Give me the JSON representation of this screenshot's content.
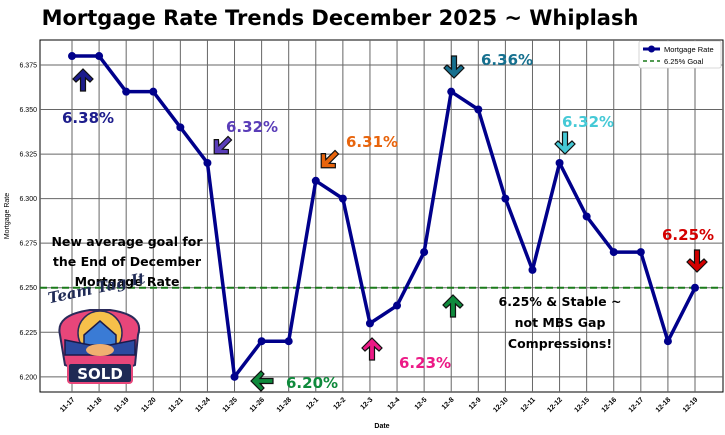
{
  "chart_data": {
    "type": "line",
    "title": "Mortgage Rate Trends December 2025 ~ Whiplash",
    "xlabel": "Date",
    "ylabel": "Mortgage Rate",
    "categories": [
      "11-17",
      "11-18",
      "11-19",
      "11-20",
      "11-21",
      "11-24",
      "11-25",
      "11-26",
      "11-28",
      "12-1",
      "12-2",
      "12-3",
      "12-4",
      "12-5",
      "12-8",
      "12-9",
      "12-10",
      "12-11",
      "12-12",
      "12-15",
      "12-16",
      "12-17",
      "12-18",
      "12-19"
    ],
    "series": [
      {
        "name": "Mortgage Rate",
        "color": "#00008b",
        "values": [
          6.38,
          6.38,
          6.36,
          6.36,
          6.34,
          6.32,
          6.2,
          6.22,
          6.22,
          6.31,
          6.3,
          6.23,
          6.24,
          6.27,
          6.36,
          6.35,
          6.3,
          6.26,
          6.32,
          6.29,
          6.27,
          6.27,
          6.22,
          6.25
        ]
      }
    ],
    "reference_line": {
      "name": "6.25% Goal",
      "value": 6.25,
      "color": "#1a7a1a",
      "style": "dashed"
    },
    "yticks": [
      "6.200",
      "6.225",
      "6.250",
      "6.275",
      "6.300",
      "6.325",
      "6.350",
      "6.375"
    ],
    "ylim": [
      6.1915,
      6.389
    ],
    "grid": true,
    "legend_position": "top-right",
    "annotations": [
      {
        "text": "6.38%",
        "color": "#1c1c8c",
        "arrow": "up"
      },
      {
        "text": "6.32%",
        "color": "#5a3db8",
        "arrow": "down-left"
      },
      {
        "text": "6.31%",
        "color": "#e8640c",
        "arrow": "down-left"
      },
      {
        "text": "6.36%",
        "color": "#16708f",
        "arrow": "down"
      },
      {
        "text": "6.32%",
        "color": "#45c9d6",
        "arrow": "down"
      },
      {
        "text": "6.25%",
        "color": "#d40000",
        "arrow": "down"
      },
      {
        "text": "6.20%",
        "color": "#0f8a3c",
        "arrow": "left"
      },
      {
        "text": "6.23%",
        "color": "#ec1a86",
        "arrow": "up"
      }
    ],
    "notes": {
      "goal_note": [
        "New average goal for",
        "the End of December",
        "Mortgage Rate"
      ],
      "stable_note": [
        "6.25% & Stable ~",
        "not MBS Gap",
        "Compressions!"
      ]
    }
  },
  "logo": {
    "top_text": "Team Tag It",
    "banner_text": "SOLD"
  }
}
